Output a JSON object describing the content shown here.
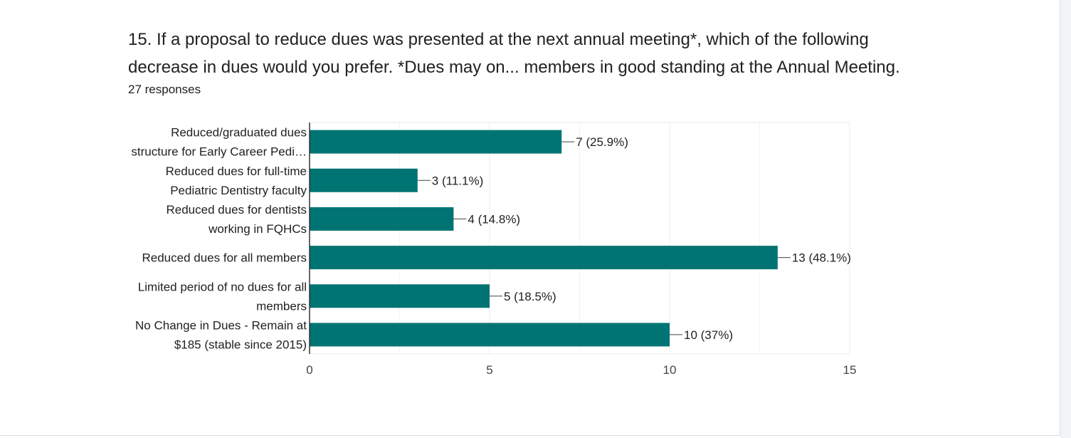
{
  "question": {
    "title": "15. If a proposal to reduce dues was presented at the next annual meeting*, which of the following decrease in dues would you prefer.   *Dues may on... members in good standing at the Annual Meeting.",
    "responses": "27 responses"
  },
  "colors": {
    "bar": "#007472",
    "grid": "#ebebeb",
    "axis": "#333333"
  },
  "chart_data": {
    "type": "bar",
    "orientation": "horizontal",
    "categories": [
      [
        "Reduced/graduated dues",
        "structure for Early Career Pedi…"
      ],
      [
        "Reduced dues for full-time",
        "Pediatric Dentistry faculty"
      ],
      [
        "Reduced dues for dentists",
        "working in FQHCs"
      ],
      [
        "Reduced dues for all members"
      ],
      [
        "Limited period of no dues for all",
        "members"
      ],
      [
        "No Change in Dues - Remain at",
        "$185 (stable since 2015)"
      ]
    ],
    "values": [
      7,
      3,
      4,
      13,
      5,
      10
    ],
    "data_labels": [
      "7 (25.9%)",
      "3 (11.1%)",
      "4 (14.8%)",
      "13 (48.1%)",
      "5 (18.5%)",
      "10 (37%)"
    ],
    "xlim": [
      0,
      15
    ],
    "x_ticks": [
      0,
      5,
      10,
      15
    ],
    "x_tick_labels": [
      "0",
      "5",
      "10",
      "15"
    ],
    "grid": true
  }
}
